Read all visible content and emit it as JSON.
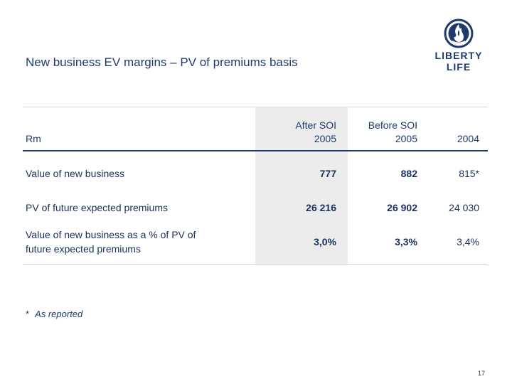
{
  "slide": {
    "title": "New business EV margins – PV of premiums basis",
    "page_number": "17"
  },
  "logo": {
    "line1": "LIBERTY",
    "line2": "LIFE",
    "icon": "flame-emblem-icon",
    "color": "#1f3a6e"
  },
  "table": {
    "headers": {
      "label": "Rm",
      "after_soi_line1": "After SOI",
      "after_soi_line2": "2005",
      "before_soi_line1": "Before SOI",
      "before_soi_line2": "2005",
      "year_2004": "2004"
    },
    "rows": [
      {
        "label": "Value of new business",
        "after_soi": "777",
        "before_soi": "882",
        "year_2004": "815*"
      },
      {
        "label": "PV of future expected premiums",
        "after_soi": "26 216",
        "before_soi": "26 902",
        "year_2004": "24 030"
      },
      {
        "label_line1": "Value of new business as a % of PV of",
        "label_line2": "future expected premiums",
        "after_soi": "3,0%",
        "before_soi": "3,3%",
        "year_2004": "3,4%"
      }
    ],
    "highlight_color": "#ececec",
    "header_rule_color": "#1f3a6e"
  },
  "footnote": {
    "marker": "*",
    "text": "As reported"
  }
}
